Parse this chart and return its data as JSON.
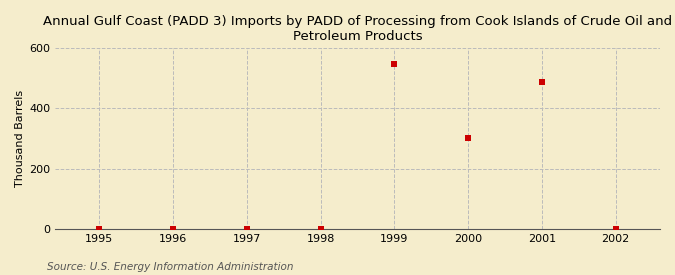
{
  "title_line1": "Annual Gulf Coast (PADD 3) Imports by PADD of Processing from Cook Islands of Crude Oil and",
  "title_line2": "Petroleum Products",
  "ylabel": "Thousand Barrels",
  "source": "Source: U.S. Energy Information Administration",
  "background_color": "#F5EDCC",
  "plot_background_color": "#F5EDCC",
  "x_data": [
    1995,
    1996,
    1997,
    1998,
    1999,
    2000,
    2001,
    2002
  ],
  "y_data": [
    0,
    0,
    0,
    0,
    549,
    302,
    489,
    0
  ],
  "marker_color": "#CC0000",
  "marker_style": "s",
  "marker_size": 18,
  "xlim": [
    1994.4,
    2002.6
  ],
  "ylim": [
    0,
    600
  ],
  "yticks": [
    0,
    200,
    400,
    600
  ],
  "xticks": [
    1995,
    1996,
    1997,
    1998,
    1999,
    2000,
    2001,
    2002
  ],
  "grid_color": "#BBBBBB",
  "grid_linestyle": "--",
  "title_fontsize": 9.5,
  "axis_label_fontsize": 8,
  "tick_fontsize": 8,
  "source_fontsize": 7.5
}
